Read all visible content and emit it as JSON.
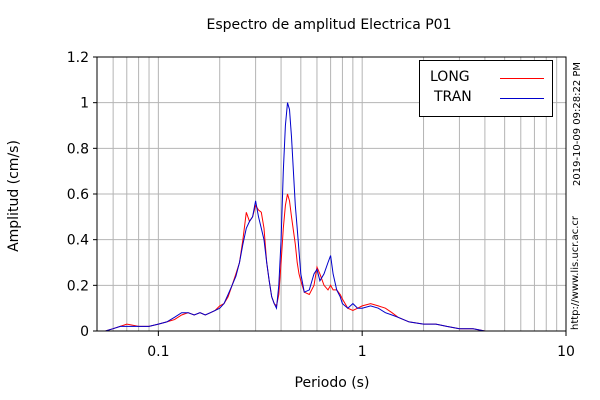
{
  "chart_data": {
    "type": "line",
    "title": "Espectro de amplitud Electrica P01",
    "xlabel": "Periodo (s)",
    "ylabel": "Amplitud (cm/s)",
    "x_scale": "log",
    "xlim": [
      0.05,
      10
    ],
    "ylim": [
      0,
      1.2
    ],
    "x_ticks": [
      0.1,
      1,
      10
    ],
    "x_tick_labels": [
      "0.1",
      "1",
      "10"
    ],
    "y_ticks": [
      0,
      0.2,
      0.4,
      0.6,
      0.8,
      1,
      1.2
    ],
    "y_tick_labels": [
      "0",
      "0.2",
      "0.4",
      "0.6",
      "0.8",
      "1",
      "1.2"
    ],
    "grid": true,
    "legend_position": "top-right",
    "side_text": [
      "2019-10-09 09:28:22 PM",
      "http://www.lis.ucr.ac.cr"
    ],
    "series": [
      {
        "name": "LONG",
        "color": "#ff0000",
        "x": [
          0.05,
          0.055,
          0.06,
          0.065,
          0.07,
          0.08,
          0.09,
          0.1,
          0.11,
          0.12,
          0.13,
          0.14,
          0.15,
          0.16,
          0.17,
          0.18,
          0.19,
          0.2,
          0.21,
          0.22,
          0.23,
          0.24,
          0.25,
          0.26,
          0.27,
          0.28,
          0.29,
          0.3,
          0.31,
          0.32,
          0.33,
          0.34,
          0.35,
          0.36,
          0.37,
          0.38,
          0.39,
          0.4,
          0.41,
          0.42,
          0.43,
          0.44,
          0.45,
          0.46,
          0.47,
          0.48,
          0.49,
          0.5,
          0.52,
          0.55,
          0.58,
          0.6,
          0.62,
          0.65,
          0.68,
          0.7,
          0.72,
          0.75,
          0.78,
          0.8,
          0.85,
          0.9,
          0.95,
          1.0,
          1.1,
          1.2,
          1.3,
          1.4,
          1.5,
          1.7,
          2.0,
          2.3,
          2.6,
          3.0,
          3.5,
          4.0,
          5.0,
          6.0,
          7.0,
          8.0,
          10.0
        ],
        "y": [
          0.0,
          0.0,
          0.01,
          0.02,
          0.03,
          0.02,
          0.02,
          0.03,
          0.04,
          0.05,
          0.07,
          0.08,
          0.07,
          0.08,
          0.07,
          0.08,
          0.09,
          0.11,
          0.12,
          0.15,
          0.2,
          0.25,
          0.3,
          0.4,
          0.52,
          0.48,
          0.5,
          0.55,
          0.53,
          0.52,
          0.45,
          0.3,
          0.22,
          0.15,
          0.12,
          0.11,
          0.16,
          0.3,
          0.45,
          0.55,
          0.6,
          0.57,
          0.5,
          0.44,
          0.38,
          0.3,
          0.25,
          0.22,
          0.17,
          0.16,
          0.2,
          0.28,
          0.25,
          0.2,
          0.18,
          0.2,
          0.18,
          0.18,
          0.16,
          0.14,
          0.1,
          0.09,
          0.1,
          0.11,
          0.12,
          0.11,
          0.1,
          0.08,
          0.06,
          0.04,
          0.03,
          0.03,
          0.02,
          0.01,
          0.01,
          0.0,
          0.0,
          0.0,
          0.0,
          0.0,
          0.0
        ]
      },
      {
        "name": "TRAN",
        "color": "#0000cc",
        "x": [
          0.05,
          0.055,
          0.06,
          0.065,
          0.07,
          0.08,
          0.09,
          0.1,
          0.11,
          0.12,
          0.13,
          0.14,
          0.15,
          0.16,
          0.17,
          0.18,
          0.19,
          0.2,
          0.21,
          0.22,
          0.23,
          0.24,
          0.25,
          0.26,
          0.27,
          0.28,
          0.29,
          0.3,
          0.31,
          0.32,
          0.33,
          0.34,
          0.35,
          0.36,
          0.37,
          0.38,
          0.39,
          0.4,
          0.41,
          0.42,
          0.43,
          0.44,
          0.45,
          0.46,
          0.47,
          0.48,
          0.49,
          0.5,
          0.52,
          0.55,
          0.58,
          0.6,
          0.62,
          0.65,
          0.68,
          0.7,
          0.72,
          0.75,
          0.78,
          0.8,
          0.85,
          0.9,
          0.95,
          1.0,
          1.1,
          1.2,
          1.3,
          1.4,
          1.5,
          1.7,
          2.0,
          2.3,
          2.6,
          3.0,
          3.5,
          4.0,
          5.0,
          6.0,
          7.0,
          8.0,
          10.0
        ],
        "y": [
          0.0,
          0.0,
          0.01,
          0.02,
          0.02,
          0.02,
          0.02,
          0.03,
          0.04,
          0.06,
          0.08,
          0.08,
          0.07,
          0.08,
          0.07,
          0.08,
          0.09,
          0.1,
          0.12,
          0.16,
          0.2,
          0.24,
          0.3,
          0.38,
          0.45,
          0.48,
          0.5,
          0.57,
          0.5,
          0.45,
          0.4,
          0.3,
          0.22,
          0.15,
          0.12,
          0.1,
          0.2,
          0.4,
          0.7,
          0.9,
          1.0,
          0.97,
          0.85,
          0.7,
          0.55,
          0.45,
          0.35,
          0.25,
          0.17,
          0.18,
          0.25,
          0.27,
          0.22,
          0.25,
          0.3,
          0.33,
          0.25,
          0.18,
          0.15,
          0.12,
          0.1,
          0.12,
          0.1,
          0.1,
          0.11,
          0.1,
          0.08,
          0.07,
          0.06,
          0.04,
          0.03,
          0.03,
          0.02,
          0.01,
          0.01,
          0.0,
          0.0,
          0.0,
          0.0,
          0.0,
          0.0
        ]
      }
    ]
  }
}
